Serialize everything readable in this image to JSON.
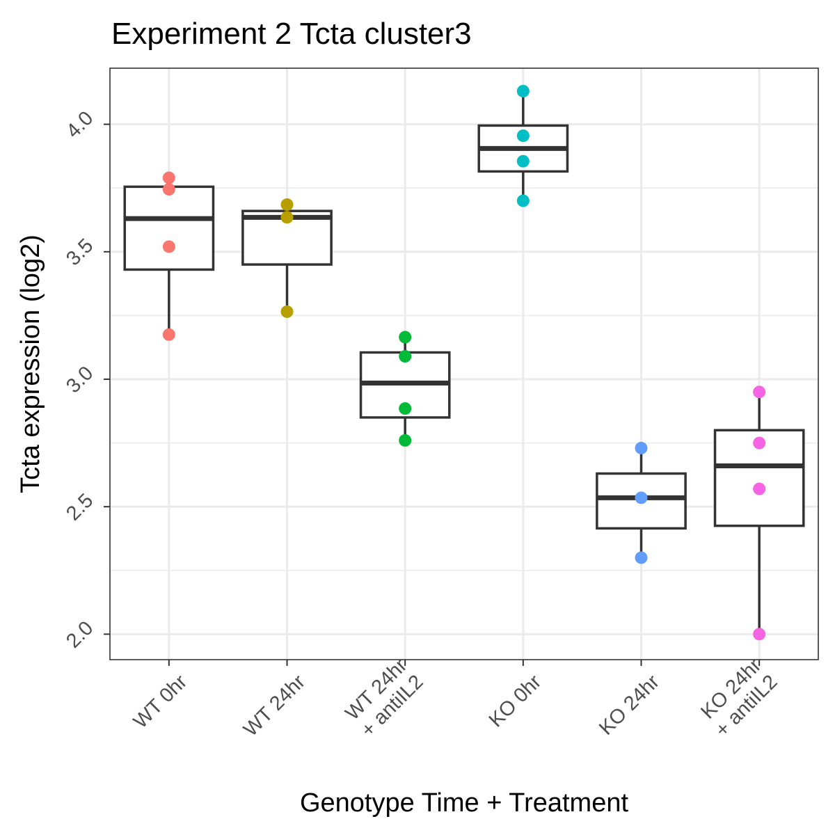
{
  "chart_data": {
    "type": "box",
    "title": "Experiment 2 Tcta cluster3",
    "xlabel": "Genotype Time + Treatment",
    "ylabel": "Tcta expression (log2)",
    "ylim": [
      1.9,
      4.22
    ],
    "y_ticks": [
      2.0,
      2.5,
      3.0,
      3.5,
      4.0
    ],
    "y_tick_labels": [
      "2.0",
      "2.5",
      "3.0",
      "3.5",
      "4.0"
    ],
    "grid": true,
    "legend": "none",
    "categories": [
      {
        "lines": [
          "WT 0hr"
        ]
      },
      {
        "lines": [
          "WT 24hr"
        ]
      },
      {
        "lines": [
          "WT 24hr",
          "+ antiIL2"
        ]
      },
      {
        "lines": [
          "KO 0hr"
        ]
      },
      {
        "lines": [
          "KO 24hr"
        ]
      },
      {
        "lines": [
          "KO 24hr",
          "+ antiIL2"
        ]
      }
    ],
    "series": [
      {
        "color": "#F8766D",
        "points": [
          3.79,
          3.745,
          3.52,
          3.175
        ],
        "box": {
          "q1": 3.43,
          "median": 3.63,
          "q3": 3.755,
          "whisker_low": 3.175,
          "whisker_high": 3.79
        }
      },
      {
        "color": "#B79F00",
        "points": [
          3.685,
          3.635,
          3.265
        ],
        "box": {
          "q1": 3.45,
          "median": 3.635,
          "q3": 3.66,
          "whisker_low": 3.265,
          "whisker_high": 3.685
        }
      },
      {
        "color": "#00BA38",
        "points": [
          3.165,
          3.09,
          2.885,
          2.76
        ],
        "box": {
          "q1": 2.85,
          "median": 2.985,
          "q3": 3.105,
          "whisker_low": 2.76,
          "whisker_high": 3.165
        }
      },
      {
        "color": "#00BFC4",
        "points": [
          4.13,
          3.955,
          3.855,
          3.7
        ],
        "box": {
          "q1": 3.815,
          "median": 3.905,
          "q3": 3.995,
          "whisker_low": 3.7,
          "whisker_high": 4.13
        }
      },
      {
        "color": "#619CFF",
        "points": [
          2.73,
          2.535,
          2.3
        ],
        "box": {
          "q1": 2.415,
          "median": 2.535,
          "q3": 2.63,
          "whisker_low": 2.3,
          "whisker_high": 2.73
        }
      },
      {
        "color": "#F564E3",
        "points": [
          2.95,
          2.75,
          2.57,
          2.0
        ],
        "box": {
          "q1": 2.425,
          "median": 2.66,
          "q3": 2.8,
          "whisker_low": 2.0,
          "whisker_high": 2.95
        }
      }
    ]
  }
}
